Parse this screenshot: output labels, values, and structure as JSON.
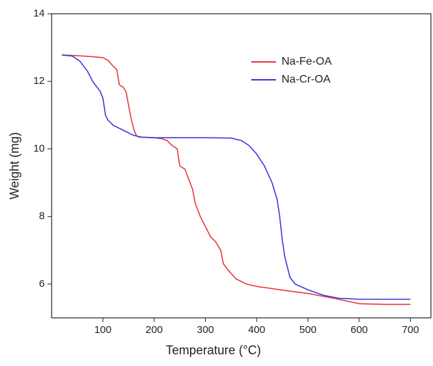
{
  "chart_data": {
    "type": "line",
    "xlabel": "Temperature (°C)",
    "ylabel": "Weight (mg)",
    "xlim": [
      0,
      740
    ],
    "ylim": [
      5,
      14
    ],
    "xticks": [
      100,
      200,
      300,
      400,
      500,
      600,
      700
    ],
    "yticks": [
      6,
      8,
      10,
      12,
      14
    ],
    "grid": false,
    "legend": "upper right",
    "series": [
      {
        "name": "Na-Fe-OA",
        "color": "#e8383d",
        "x": [
          20,
          50,
          80,
          100,
          110,
          120,
          127,
          132,
          140,
          145,
          150,
          155,
          160,
          165,
          170,
          200,
          215,
          225,
          235,
          245,
          250,
          260,
          265,
          275,
          280,
          290,
          300,
          310,
          320,
          330,
          335,
          345,
          360,
          380,
          400,
          450,
          500,
          550,
          600,
          650,
          700
        ],
        "values": [
          12.78,
          12.76,
          12.73,
          12.7,
          12.62,
          12.45,
          12.35,
          11.9,
          11.82,
          11.7,
          11.3,
          10.9,
          10.6,
          10.4,
          10.35,
          10.33,
          10.3,
          10.25,
          10.1,
          10.0,
          9.5,
          9.4,
          9.2,
          8.8,
          8.4,
          8.0,
          7.7,
          7.4,
          7.25,
          7.0,
          6.6,
          6.4,
          6.15,
          6.0,
          5.93,
          5.82,
          5.72,
          5.58,
          5.42,
          5.4,
          5.4
        ]
      },
      {
        "name": "Na-Cr-OA",
        "color": "#3a3ae0",
        "x": [
          20,
          40,
          55,
          70,
          80,
          95,
          100,
          105,
          110,
          120,
          140,
          160,
          175,
          200,
          300,
          350,
          370,
          385,
          400,
          415,
          430,
          440,
          445,
          450,
          455,
          460,
          465,
          475,
          500,
          530,
          560,
          600,
          700
        ],
        "values": [
          12.78,
          12.75,
          12.6,
          12.3,
          12.0,
          11.7,
          11.5,
          11.0,
          10.85,
          10.7,
          10.55,
          10.4,
          10.35,
          10.33,
          10.33,
          10.32,
          10.25,
          10.1,
          9.85,
          9.5,
          9.0,
          8.5,
          8.0,
          7.3,
          6.8,
          6.5,
          6.2,
          6.0,
          5.83,
          5.67,
          5.58,
          5.55,
          5.55
        ]
      }
    ]
  }
}
